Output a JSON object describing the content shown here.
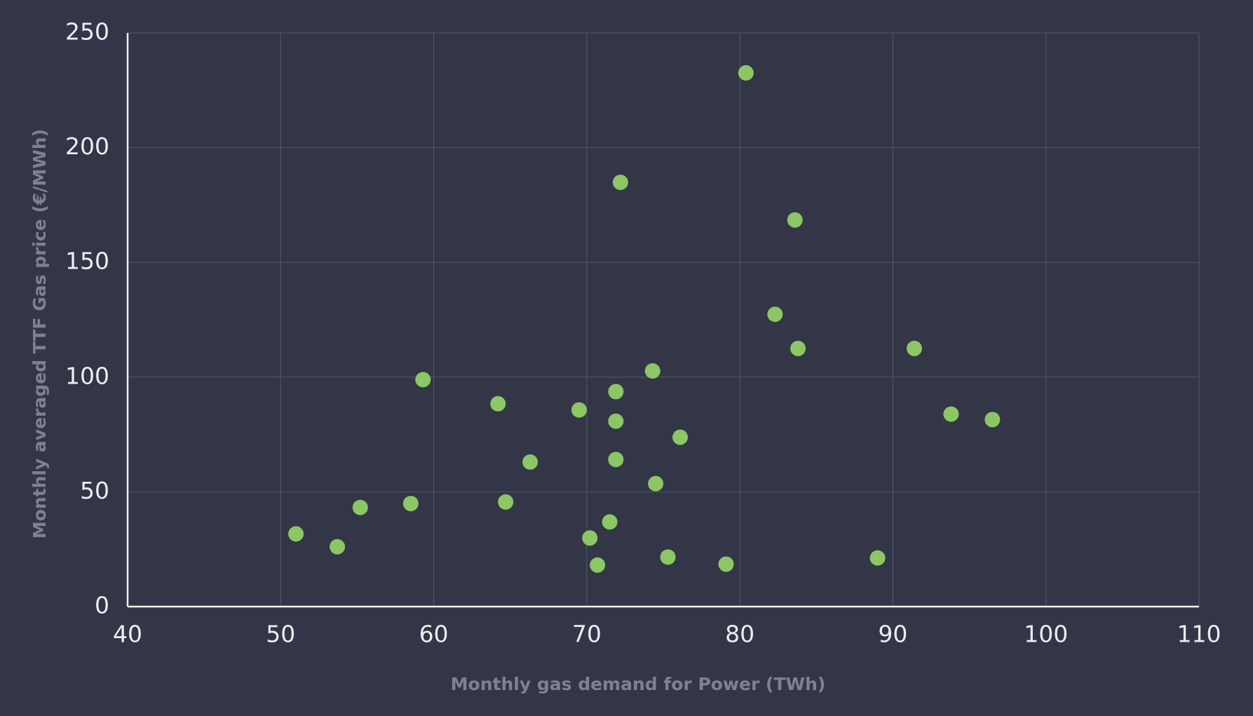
{
  "chart_data": {
    "type": "scatter",
    "x_label": "Monthly gas demand for Power (TWh)",
    "y_label": "Monthly averaged TTF Gas price (€/MWh)",
    "series": [
      {
        "color": "#8cc665",
        "x": [
          51.0,
          53.7,
          55.2,
          58.5,
          59.3,
          64.2,
          64.7,
          66.3,
          69.5,
          70.2,
          70.7,
          71.5,
          71.9,
          71.9,
          71.9,
          72.2,
          74.3,
          74.5,
          75.3,
          76.1,
          79.1,
          80.4,
          82.3,
          83.6,
          83.8,
          89.0,
          91.4,
          93.8,
          96.5
        ],
        "values": [
          31.7,
          26.1,
          43.2,
          44.9,
          98.9,
          88.4,
          45.6,
          63.0,
          85.7,
          29.9,
          18.1,
          36.9,
          64.1,
          80.8,
          93.7,
          184.9,
          102.7,
          53.6,
          21.6,
          73.8,
          18.5,
          232.6,
          127.4,
          168.5,
          112.5,
          21.2,
          112.5,
          83.9,
          81.5
        ]
      }
    ],
    "xlim": [
      40,
      110
    ],
    "xticks": [
      40,
      50,
      60,
      70,
      80,
      90,
      100,
      110
    ],
    "ylim": [
      0,
      250
    ],
    "yticks": [
      0,
      50,
      100,
      150,
      200,
      250
    ],
    "grid": true
  }
}
